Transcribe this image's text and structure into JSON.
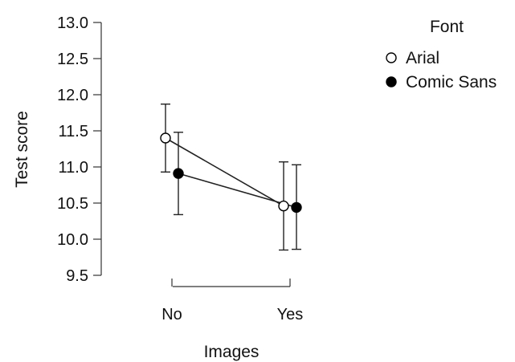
{
  "chart_data": {
    "type": "line",
    "categories": [
      "No",
      "Yes"
    ],
    "xlabel": "Images",
    "ylabel": "Test score",
    "ylim": [
      9.5,
      13.0
    ],
    "yticks": [
      "9.5",
      "10.0",
      "10.5",
      "11.0",
      "11.5",
      "12.0",
      "12.5",
      "13.0"
    ],
    "grid": false,
    "legend": {
      "title": "Font",
      "placement": "top-right"
    },
    "series": [
      {
        "name": "Arial",
        "marker": "open-circle",
        "values": [
          11.4,
          10.46
        ],
        "ci_low": [
          10.93,
          9.85
        ],
        "ci_high": [
          11.87,
          11.07
        ]
      },
      {
        "name": "Comic Sans",
        "marker": "filled-circle",
        "values": [
          10.91,
          10.44
        ],
        "ci_low": [
          10.34,
          9.86
        ],
        "ci_high": [
          11.48,
          11.03
        ]
      }
    ],
    "colors": {
      "line": "#222222",
      "open_fill": "#ffffff",
      "filled_fill": "#000000"
    }
  }
}
